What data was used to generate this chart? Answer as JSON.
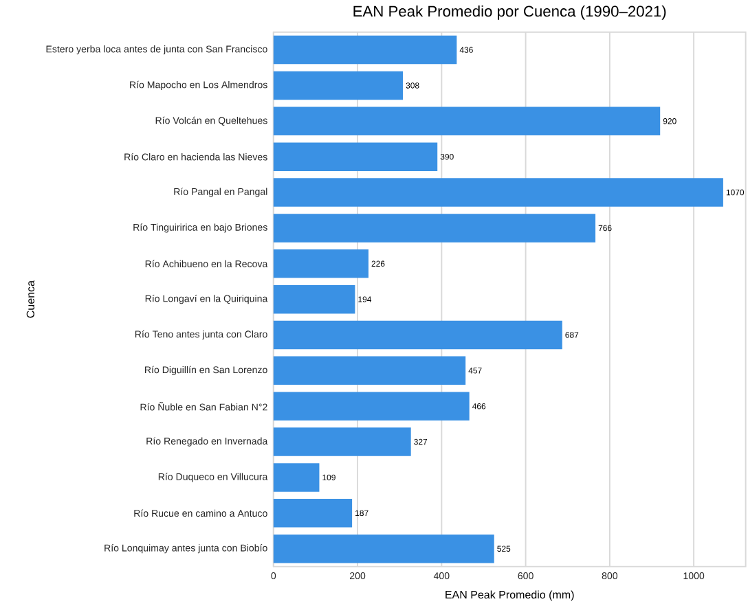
{
  "chart_data": {
    "type": "bar",
    "orientation": "horizontal",
    "title": "EAN Peak Promedio por Cuenca (1990–2021)",
    "xlabel": "EAN Peak Promedio (mm)",
    "ylabel": "Cuenca",
    "categories": [
      "Estero yerba loca antes de junta con San Francisco",
      "Río Mapocho en Los Almendros",
      "Río Volcán en Queltehues",
      "Río Claro en hacienda las Nieves",
      "Río Pangal en Pangal",
      "Río Tinguiririca en bajo Briones",
      "Río Achibueno en la Recova",
      "Río Longaví en la Quiriquina",
      "Río Teno antes junta con Claro",
      "Río Diguillín en San Lorenzo",
      "Río Ñuble en San Fabian N°2",
      "Río Renegado en Invernada",
      "Río Duqueco en Villucura",
      "Río Rucue en camino a Antuco",
      "Río Lonquimay antes junta con Biobío"
    ],
    "values": [
      436,
      308,
      920,
      390,
      1070,
      766,
      226,
      194,
      687,
      457,
      466,
      327,
      109,
      187,
      525
    ],
    "color": "#3a91e4",
    "xlim": [
      0,
      1123.5
    ],
    "xticks": [
      0,
      200,
      400,
      600,
      800,
      1000
    ],
    "grid": "x",
    "data_labels": true
  }
}
